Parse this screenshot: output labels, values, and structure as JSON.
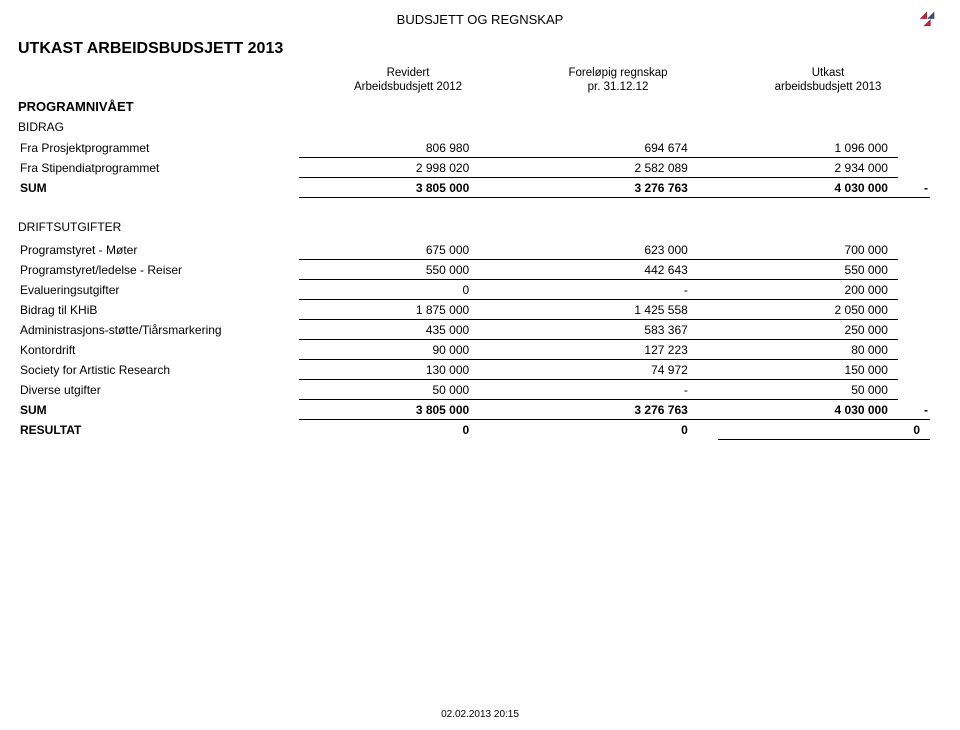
{
  "header_overtitle": "BUDSJETT OG REGNSKAP",
  "title": "UTKAST ARBEIDSBUDSJETT 2013",
  "logo_colors": {
    "left": "#b02a3a",
    "right": "#3a4c7a"
  },
  "column_headers": {
    "col1_line1": "Revidert",
    "col1_line2": "Arbeidsbudsjett 2012",
    "col2_line1": "Foreløpig regnskap",
    "col2_line2": "pr. 31.12.12",
    "col3_line1": "Utkast",
    "col3_line2": "arbeidsbudsjett 2013"
  },
  "program_label": "PROGRAMNIVÅET",
  "bidrag_label": "BIDRAG",
  "bidrag_rows": [
    {
      "label": "Fra Prosjektprogrammet",
      "c1": "806 980",
      "c2": "694 674",
      "c3": "1 096 000"
    },
    {
      "label": "Fra Stipendiatprogrammet",
      "c1": "2 998 020",
      "c2": "2 582 089",
      "c3": "2 934 000"
    }
  ],
  "bidrag_sum": {
    "label": "SUM",
    "c1": "3 805 000",
    "c2": "3 276 763",
    "c3": "4 030 000",
    "dash": "-"
  },
  "drift_label": "DRIFTSUTGIFTER",
  "drift_rows": [
    {
      "label": "Programstyret - Møter",
      "c1": "675 000",
      "c2": "623 000",
      "c3": "700 000"
    },
    {
      "label": "Programstyret/ledelse - Reiser",
      "c1": "550 000",
      "c2": "442 643",
      "c3": "550 000"
    },
    {
      "label": "Evalueringsutgifter",
      "c1": "0",
      "c2": "-",
      "c3": "200 000"
    },
    {
      "label": "Bidrag til KHiB",
      "c1": "1 875 000",
      "c2": "1 425 558",
      "c3": "2 050 000"
    },
    {
      "label": "Administrasjons-støtte/Tiårsmarkering",
      "c1": "435 000",
      "c2": "583 367",
      "c3": "250 000"
    },
    {
      "label": "Kontordrift",
      "c1": "90 000",
      "c2": "127 223",
      "c3": "80 000"
    },
    {
      "label": "Society for Artistic Research",
      "c1": "130 000",
      "c2": "74 972",
      "c3": "150 000"
    },
    {
      "label": "Diverse utgifter",
      "c1": "50 000",
      "c2": "-",
      "c3": "50 000"
    }
  ],
  "drift_sum": {
    "label": "SUM",
    "c1": "3 805 000",
    "c2": "3 276 763",
    "c3": "4 030 000",
    "dash": "-"
  },
  "resultat": {
    "label": "RESULTAT",
    "c1": "0",
    "c2": "0",
    "c3": "0"
  },
  "footer": "02.02.2013    20:15"
}
